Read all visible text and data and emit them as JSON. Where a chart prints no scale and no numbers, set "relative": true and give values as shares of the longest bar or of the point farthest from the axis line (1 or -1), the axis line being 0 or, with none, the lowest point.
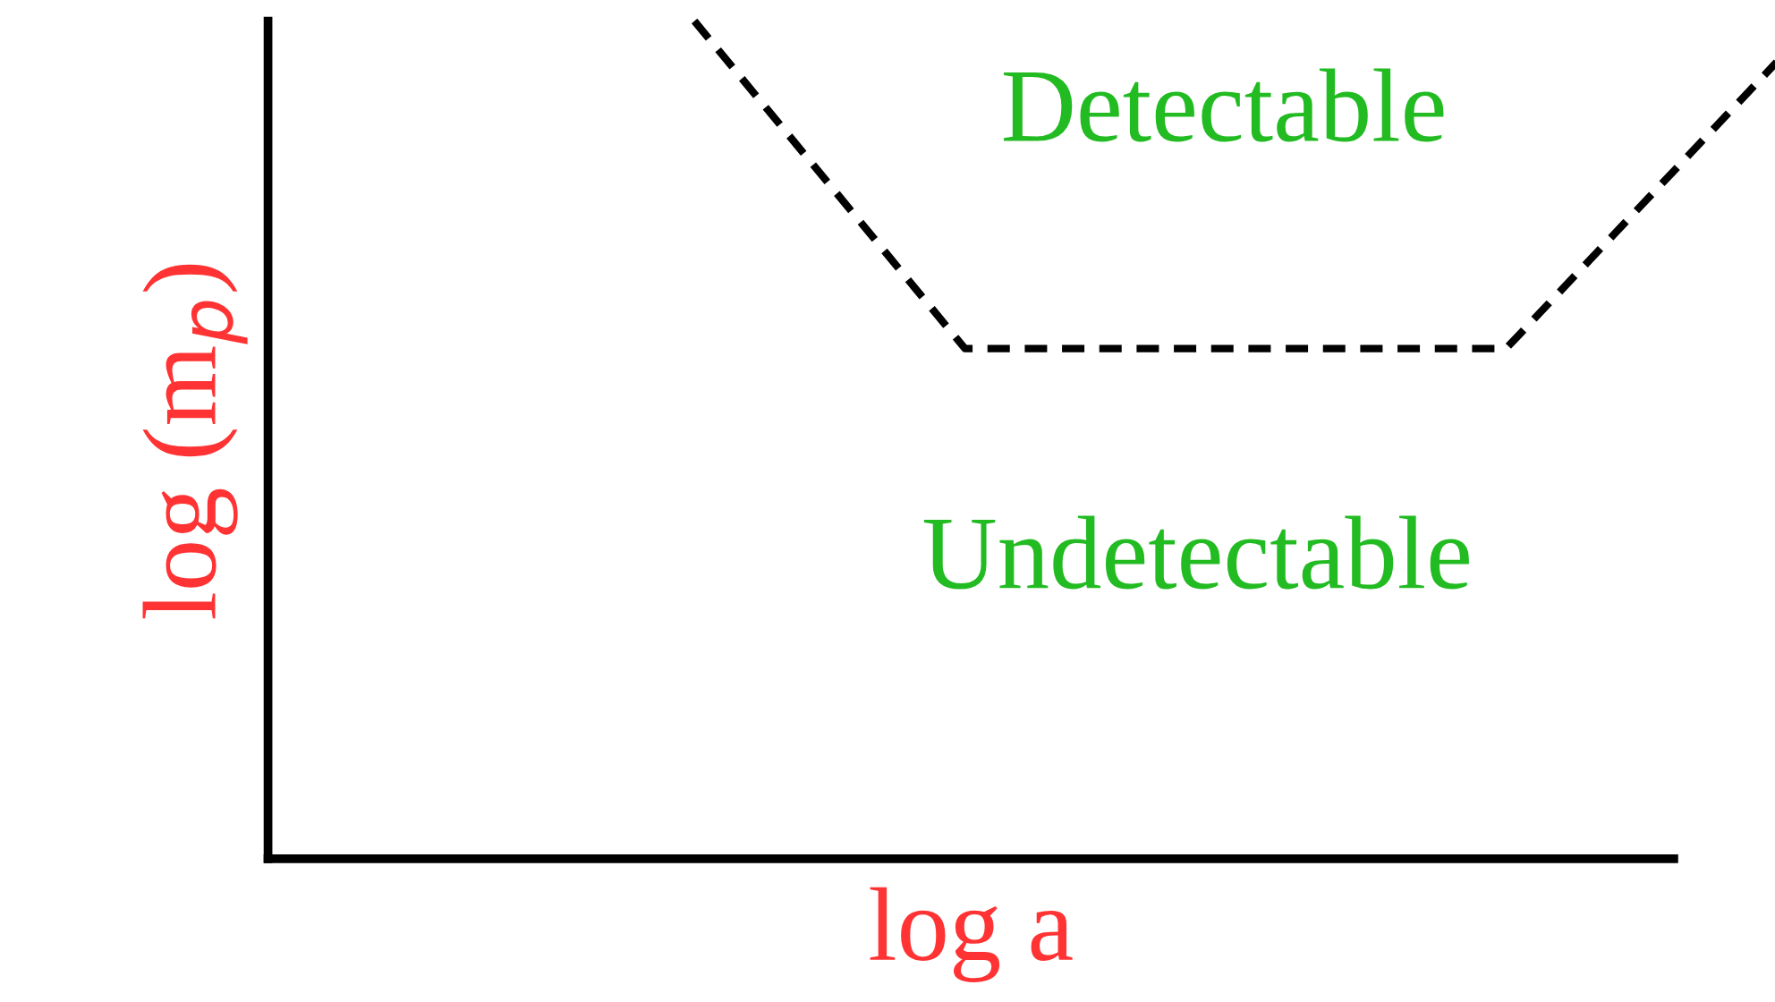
{
  "chart_data": {
    "type": "line",
    "relative": true,
    "xlabel": "log a",
    "ylabel": "log (m$_{p}$)",
    "categories": [
      null,
      null,
      null,
      null,
      null
    ],
    "series": [
      {
        "color": "#000000",
        "values": [
          1,
          0.609,
          0.609,
          0.609,
          0.951
        ]
      }
    ],
    "line_style": "dashed",
    "annotations": [
      "Detectable",
      "Undetectable"
    ]
  }
}
